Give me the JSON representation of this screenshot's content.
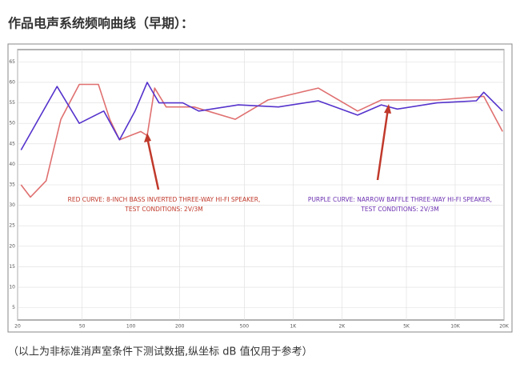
{
  "chart_data": {
    "type": "line",
    "title": "作品电声系统频响曲线（早期）：",
    "footnote": "（以上为非标准消声室条件下测试数据,纵坐标 dB 值仅用于参考）",
    "annotations": [
      {
        "text": [
          "RED CURVE: 8-INCH BASS INVERTED THREE-WAY HI-FI SPEAKER,",
          "TEST CONDITIONS: 2V/3M"
        ],
        "color": "#c0392b"
      },
      {
        "text": [
          "PURPLE CURVE: NARROW BAFFLE THREE-WAY HI-FI SPEAKER,",
          "TEST CONDITIONS: 2V/3M"
        ],
        "color": "#6a2fb0"
      }
    ],
    "xscale": "log",
    "grid": true,
    "xlim": [
      20,
      20000
    ],
    "xticks": [
      20,
      50,
      100,
      200,
      500,
      {
        "value": 1000,
        "label": "1K"
      },
      {
        "value": 2000,
        "label": "2K"
      },
      {
        "value": 5000,
        "label": "5K"
      },
      {
        "value": 10000,
        "label": "10K"
      },
      {
        "value": 20000,
        "label": "20K"
      }
    ],
    "ylim": [
      2,
      68
    ],
    "yticks": [
      5,
      10,
      15,
      20,
      25,
      30,
      35,
      40,
      45,
      50,
      55,
      60,
      65
    ],
    "series": [
      {
        "color": "#e07070",
        "x": [
          21,
          24,
          30,
          37,
          48,
          63,
          74,
          85,
          115,
          126,
          140,
          165,
          245,
          440,
          700,
          1430,
          2500,
          3500,
          7700,
          15000,
          19600
        ],
        "values": [
          35,
          32,
          36,
          51,
          59.5,
          59.5,
          51,
          46,
          48,
          47,
          58.6,
          54,
          54,
          51,
          55.7,
          58.6,
          53,
          55.7,
          55.7,
          56.6,
          48
        ]
      },
      {
        "color": "#5533cc",
        "x": [
          21,
          35,
          48,
          68,
          85,
          106,
          126,
          149,
          209,
          262,
          460,
          812,
          1430,
          2500,
          3500,
          4400,
          7700,
          13500,
          15000,
          19600
        ],
        "values": [
          43.5,
          59,
          50,
          53,
          46,
          53,
          60,
          55,
          55,
          53,
          54.5,
          54,
          55.5,
          52,
          54.5,
          53.5,
          55,
          55.5,
          57.6,
          53
        ]
      }
    ]
  }
}
